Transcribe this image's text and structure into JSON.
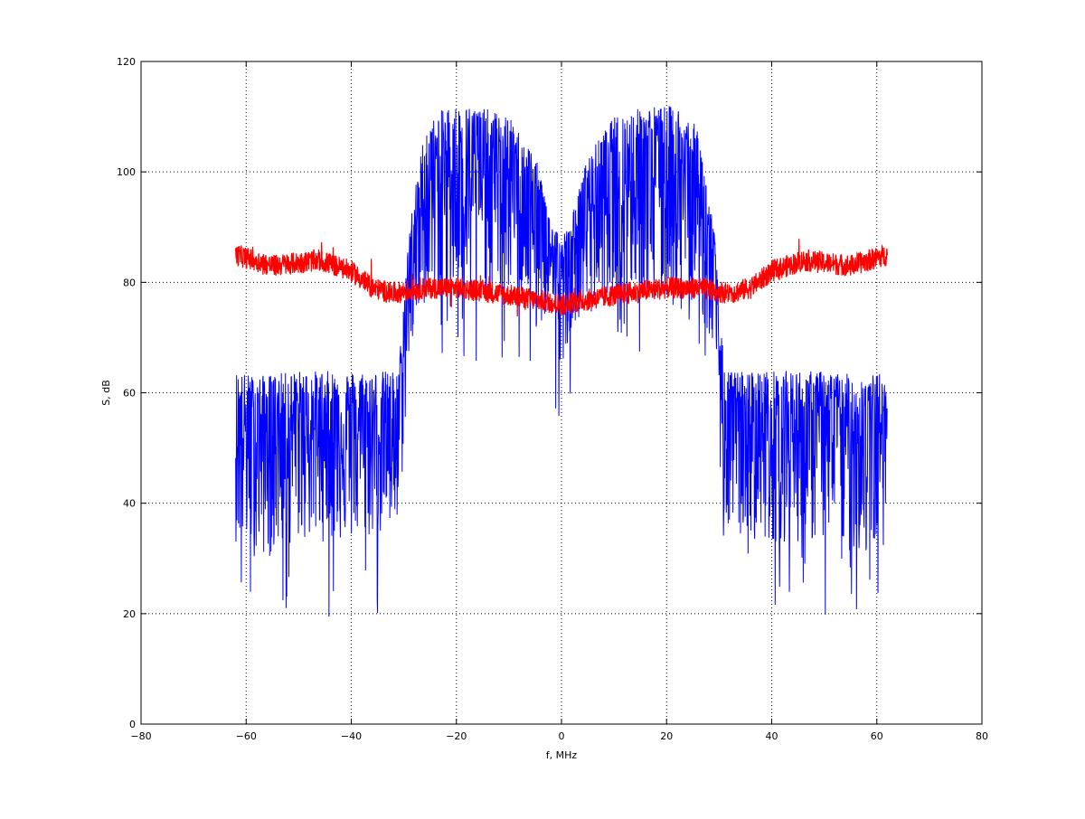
{
  "chart_data": {
    "type": "line",
    "title": "",
    "xlabel": "f, MHz",
    "ylabel": "S, dB",
    "xlim": [
      -80,
      80
    ],
    "ylim": [
      0,
      120
    ],
    "xticks": [
      -80,
      -60,
      -40,
      -20,
      0,
      20,
      40,
      60,
      80
    ],
    "yticks": [
      0,
      20,
      40,
      60,
      80,
      100,
      120
    ],
    "xtick_labels": [
      "−80",
      "−60",
      "−40",
      "−20",
      "0",
      "20",
      "40",
      "60",
      "80"
    ],
    "ytick_labels": [
      "0",
      "20",
      "40",
      "60",
      "80",
      "100",
      "120"
    ],
    "grid": true,
    "legend": "none",
    "series": [
      {
        "color": "#0000ff",
        "description_points": {
          "x": [
            -62,
            -58,
            -50,
            -40,
            -31,
            -29,
            -26,
            -22,
            -16,
            -10,
            -5,
            -2,
            0,
            2,
            5,
            10,
            16,
            22,
            26,
            29,
            31,
            40,
            50,
            58,
            62
          ],
          "upper": [
            64,
            63,
            64,
            64,
            64,
            90,
            108,
            112,
            112,
            110,
            103,
            92,
            88,
            92,
            103,
            110,
            112,
            112,
            108,
            90,
            64,
            64,
            64,
            63,
            64
          ],
          "lower": [
            33,
            30,
            33,
            33,
            34,
            66,
            76,
            78,
            78,
            78,
            76,
            72,
            65,
            72,
            76,
            78,
            78,
            78,
            76,
            66,
            34,
            33,
            33,
            30,
            33
          ],
          "center": [
            53,
            53,
            54,
            53,
            53,
            82,
            96,
            100,
            100,
            99,
            94,
            85,
            78,
            85,
            94,
            99,
            100,
            100,
            96,
            82,
            53,
            53,
            54,
            53,
            53
          ]
        }
      },
      {
        "color": "#ff0000",
        "description_points": {
          "x": [
            -62,
            -55,
            -46,
            -40,
            -36,
            -32,
            -26,
            -20,
            -12,
            -6,
            0,
            6,
            12,
            20,
            26,
            32,
            36,
            40,
            46,
            55,
            62
          ],
          "center": [
            85,
            83,
            84,
            82,
            79,
            78,
            79,
            79,
            78,
            77,
            76,
            77,
            78,
            79,
            79,
            78,
            79,
            82,
            84,
            83,
            85
          ],
          "half_width": 2
        }
      }
    ]
  }
}
